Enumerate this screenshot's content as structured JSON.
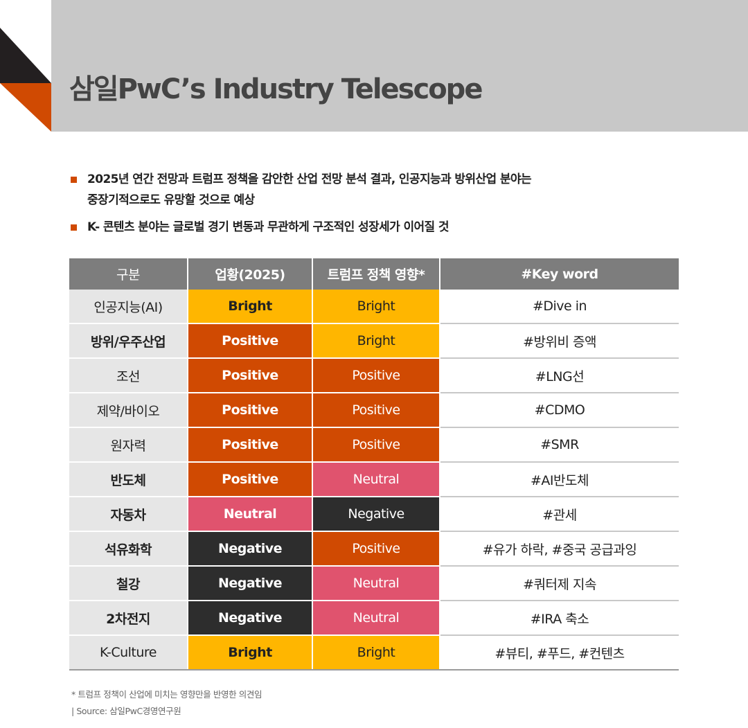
{
  "header": {
    "title": "삼일PwC’s Industry Telescope",
    "colors": {
      "banner": "#c8c8c8",
      "accent_orange": "#d04a02",
      "accent_dark": "#231f20"
    }
  },
  "bullets": [
    {
      "line1": "2025년 연간 전망과 트럼프 정책을 감안한 산업 전망 분석 결과, 인공지능과 방위산업 분야는",
      "line2": "중장기적으로도 유망할 것으로 예상"
    },
    {
      "line1": "K- 콘텐츠 분야는 글로벌 경기 변동과 무관하게 구조적인 성장세가 이어질 것",
      "line2": ""
    }
  ],
  "table": {
    "headers": [
      "구분",
      "업황(2025)",
      "트럼프 정책 영향*",
      "#Key word"
    ],
    "status_colors": {
      "Bright": "#ffb600",
      "Positive": "#d04a02",
      "Neutral": "#e0536e",
      "Negative": "#2d2d2d"
    },
    "rows": [
      {
        "category": "인공지능(AI)",
        "category_bold": false,
        "outlook": "Bright",
        "policy": "Bright",
        "keyword": "#Dive in"
      },
      {
        "category": "방위/우주산업",
        "category_bold": true,
        "outlook": "Positive",
        "policy": "Bright",
        "keyword": "#방위비 증액"
      },
      {
        "category": "조선",
        "category_bold": false,
        "outlook": "Positive",
        "policy": "Positive",
        "keyword": "#LNG선"
      },
      {
        "category": "제약/바이오",
        "category_bold": false,
        "outlook": "Positive",
        "policy": "Positive",
        "keyword": "#CDMO"
      },
      {
        "category": "원자력",
        "category_bold": false,
        "outlook": "Positive",
        "policy": "Positive",
        "keyword": "#SMR"
      },
      {
        "category": "반도체",
        "category_bold": true,
        "outlook": "Positive",
        "policy": "Neutral",
        "keyword": "#AI반도체"
      },
      {
        "category": "자동차",
        "category_bold": true,
        "outlook": "Neutral",
        "policy": "Negative",
        "keyword": "#관세"
      },
      {
        "category": "석유화학",
        "category_bold": true,
        "outlook": "Negative",
        "policy": "Positive",
        "keyword": "#유가 하락, #중국 공급과잉"
      },
      {
        "category": "철강",
        "category_bold": true,
        "outlook": "Negative",
        "policy": "Neutral",
        "keyword": "#쿼터제 지속"
      },
      {
        "category": "2차전지",
        "category_bold": true,
        "outlook": "Negative",
        "policy": "Neutral",
        "keyword": "#IRA 축소"
      },
      {
        "category": "K-Culture",
        "category_bold": false,
        "outlook": "Bright",
        "policy": "Bright",
        "keyword": "#뷰티, #푸드, #컨텐츠"
      }
    ]
  },
  "footnotes": {
    "note": "* 트럼프 정책이 산업에 미치는 영향만을 반영한 의견임",
    "source": "| Source: 삼일PwC경영연구원"
  }
}
